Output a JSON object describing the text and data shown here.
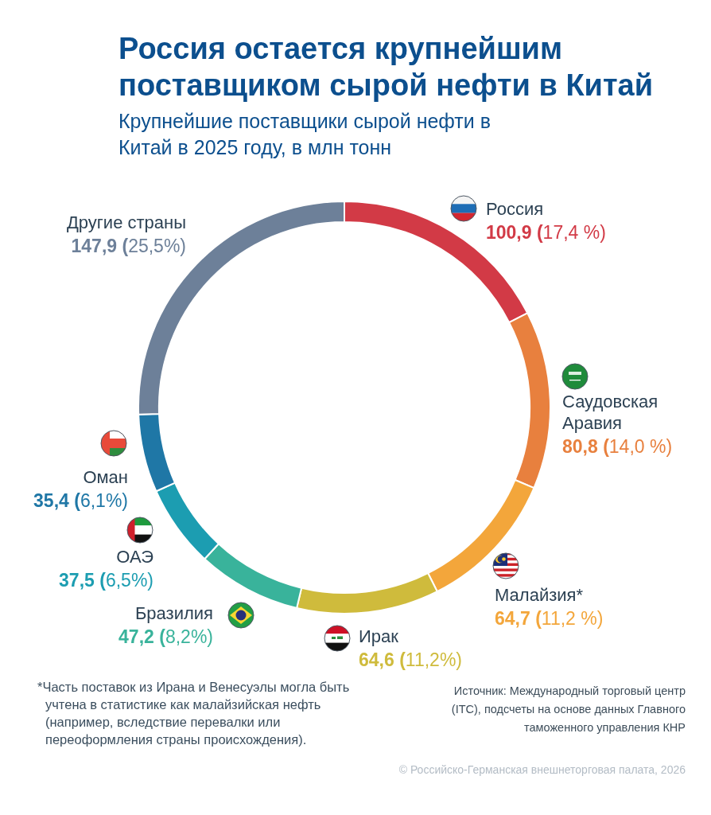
{
  "chart_data": {
    "type": "donut",
    "title": "Россия остается крупнейшим поставщиком сырой нефти в Китай",
    "subtitle": "Крупнейшие поставщики сырой нефти в Китай в 2025 году, в млн тонн",
    "categories": [
      "Россия",
      "Саудовская Аравия",
      "Малайзия*",
      "Ирак",
      "Бразилия",
      "ОАЭ",
      "Оман",
      "Другие страны"
    ],
    "values": [
      100.9,
      80.8,
      64.7,
      64.6,
      47.2,
      37.5,
      35.4,
      147.9
    ],
    "colors": [
      "#d23a46",
      "#e8803e",
      "#f3a63b",
      "#cfbb3c",
      "#39b39b",
      "#1c9db1",
      "#1f77a6",
      "#6d8099"
    ],
    "value_labels": [
      "100,9 (17,4 %)",
      "80,8 (14,0 %)",
      "64,7 (11,2 %)",
      "64,6 (11,2%)",
      "47,2 (8,2%)",
      "37,5 (6,5%)",
      "35,4 (6,1%)",
      "147,9 (25,5%)"
    ],
    "annotations": [
      "*Часть поставок из Ирана и Венесуэлы могла быть учтена в статистике как малайзийская нефть (например, вследствие перевалки или переоформления страны происхождения).",
      "Источник: Международный торговый центр (ITC), подсчеты на основе данных Главного таможенного управления КНР",
      "© Российско-Германская внешнеторговая палата, 2026"
    ]
  }
}
